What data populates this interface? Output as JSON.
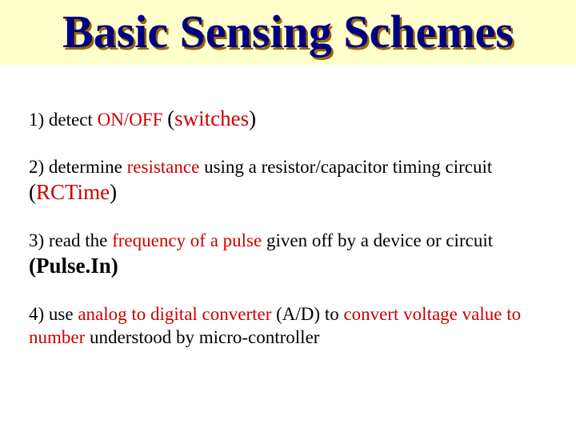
{
  "title": "Basic Sensing Schemes",
  "colors": {
    "title_band_bg": "#ffffcc",
    "title_text": "#000080",
    "title_shadow": "#996600",
    "accent_red": "#cc0000",
    "body_text": "#000000"
  },
  "typography": {
    "title_fontsize": 58,
    "body_fontsize": 23,
    "big_fontsize": 27,
    "font_family": "Times New Roman"
  },
  "items": [
    {
      "prefix": "1) detect ",
      "accent1": "ON/OFF",
      "mid": " ",
      "big_paren_open": "(",
      "big_inner": "switches",
      "big_paren_close": ")"
    },
    {
      "line1_a": "2) determine ",
      "line1_red": "resistance",
      "line1_b": " using a resistor/capacitor timing circuit",
      "big_paren_open": "(",
      "big_inner": "RCTime",
      "big_paren_close": ")"
    },
    {
      "line1_a": "3) read the ",
      "line1_red": "frequency of a pulse",
      "line1_b": " given off by a device or circuit",
      "big": "(Pulse.In)"
    },
    {
      "line1_a": "4) use ",
      "line1_red1": "analog to digital converter",
      "line1_b": " (A/D) to ",
      "line1_red2": "convert voltage value to number",
      "line1_c": " understood by micro-controller"
    }
  ]
}
